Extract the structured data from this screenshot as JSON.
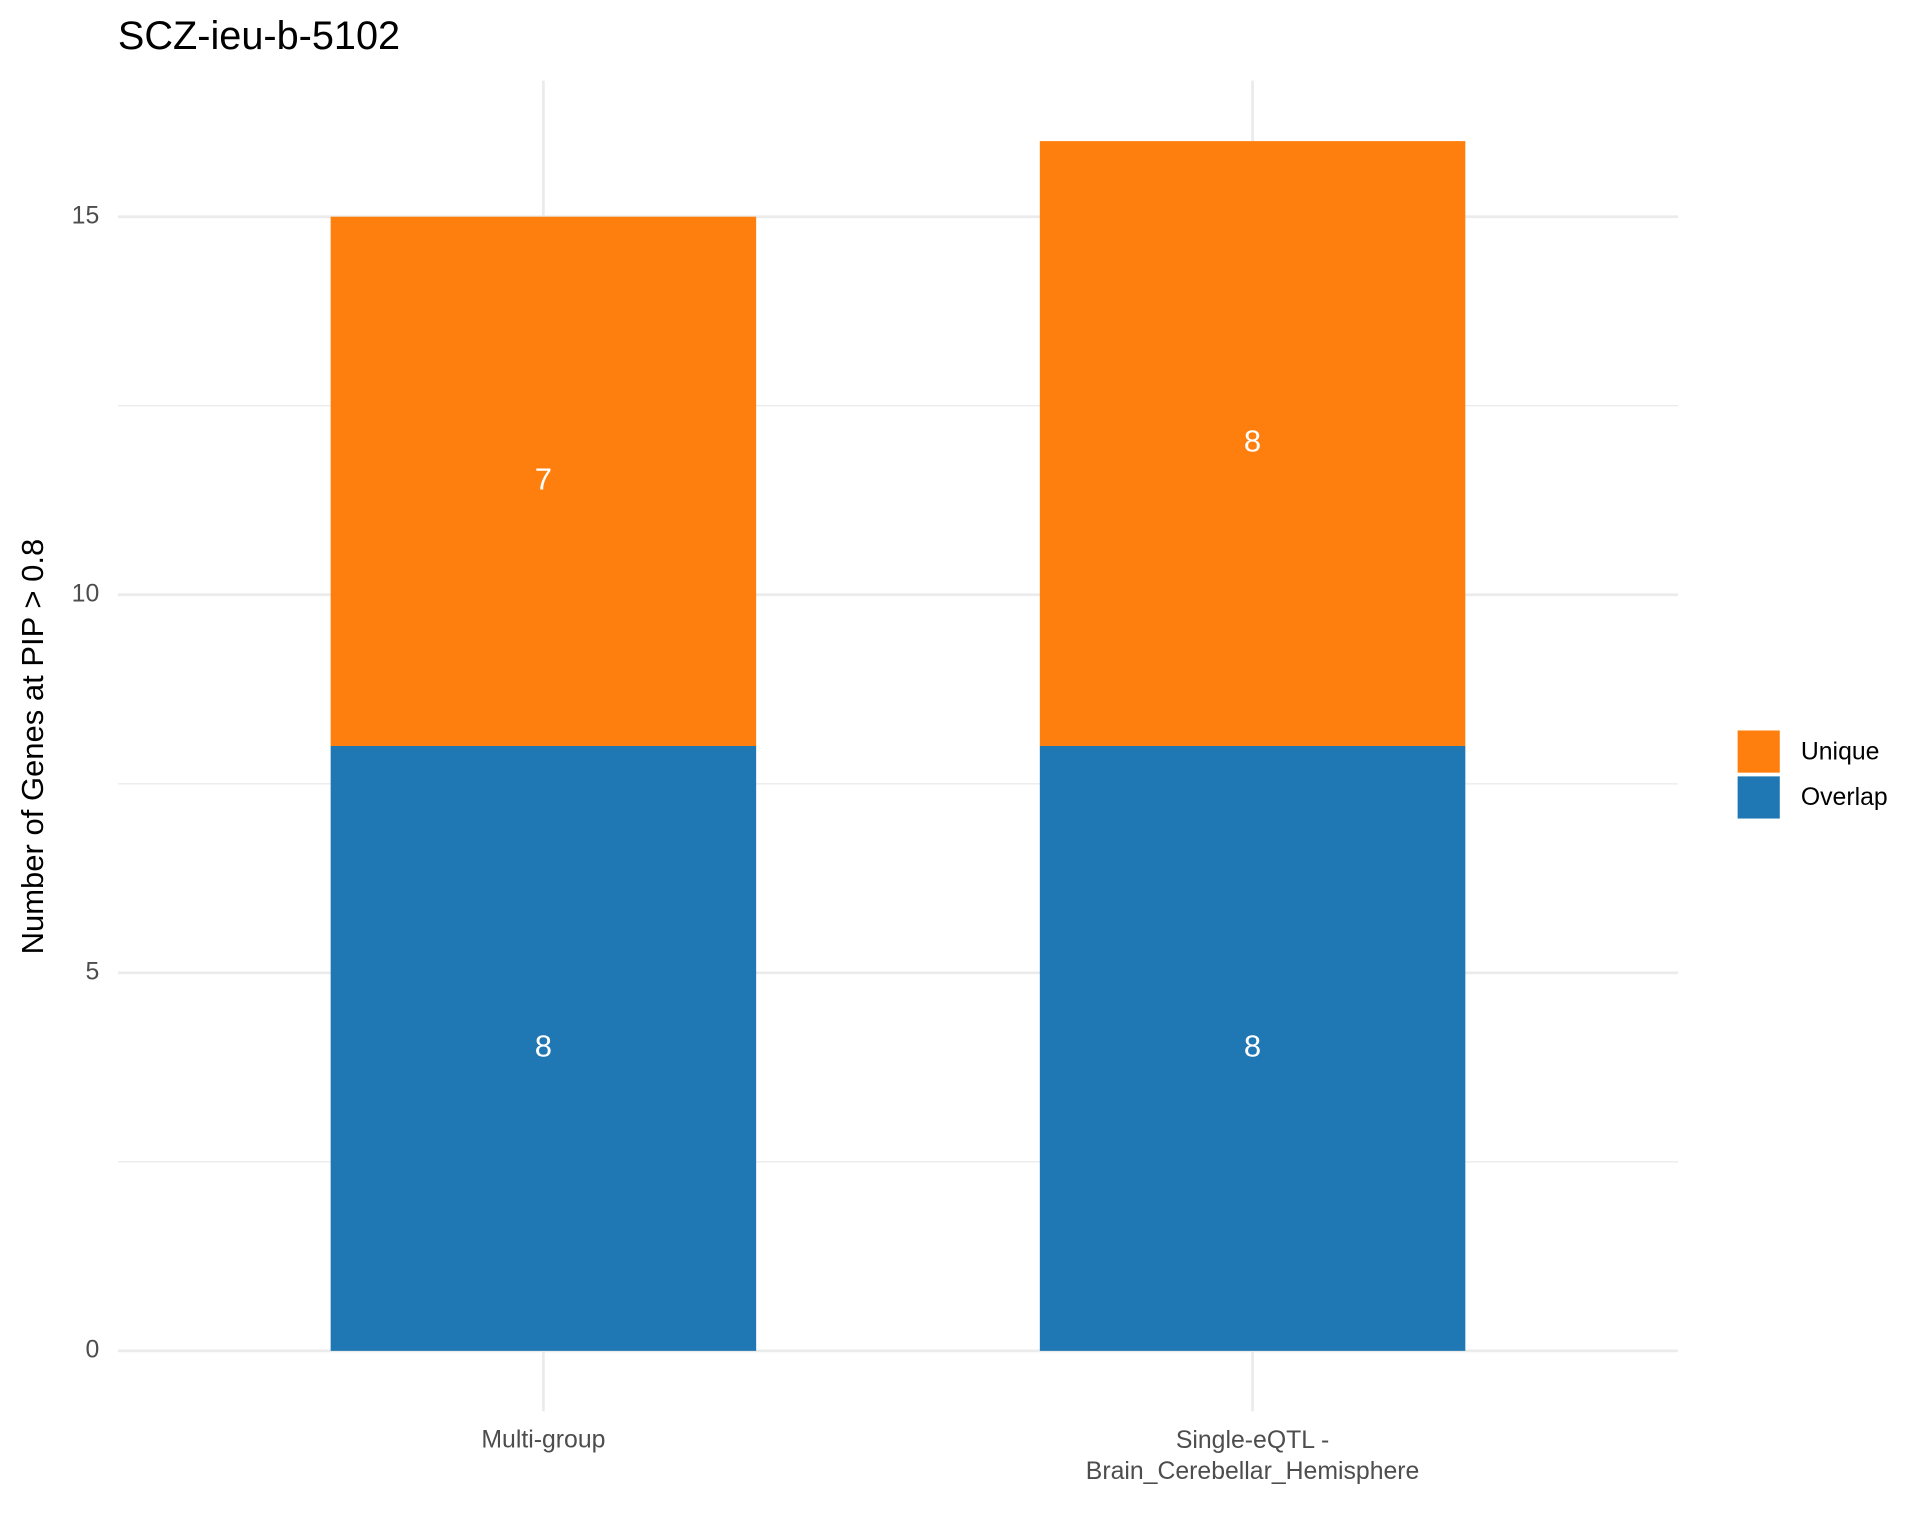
{
  "chart_data": {
    "type": "stacked_bar",
    "title": "SCZ-ieu-b-5102",
    "y_label": "Number of Genes at PIP > 0.8",
    "categories": [
      "Multi-group",
      "Single-eQTL -\nBrain_Cerebellar_Hemisphere"
    ],
    "series": [
      {
        "name": "Overlap",
        "color": "#1f77b4",
        "values": [
          8,
          8
        ]
      },
      {
        "name": "Unique",
        "color": "#ff7f0e",
        "values": [
          7,
          8
        ]
      }
    ],
    "ylim": [
      -0.8,
      16.8
    ],
    "yticks": [
      0,
      5,
      10,
      15
    ],
    "minor_yticks": [
      2.5,
      7.5,
      12.5
    ],
    "grid": true,
    "legend": "right"
  }
}
